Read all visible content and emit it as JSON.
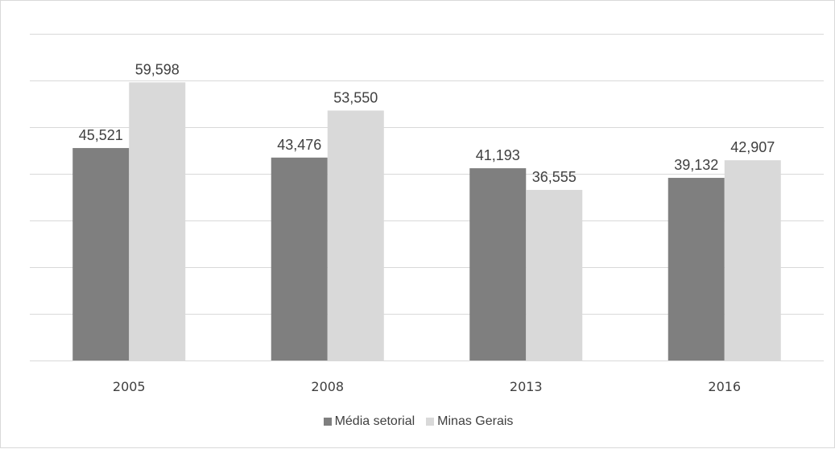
{
  "chart_data": {
    "type": "bar",
    "categories": [
      "2005",
      "2008",
      "2013",
      "2016"
    ],
    "series": [
      {
        "name": "Média setorial",
        "values": [
          45.521,
          43.476,
          41.193,
          39.132
        ],
        "labels": [
          "45,521",
          "43,476",
          "41,193",
          "39,132"
        ],
        "color": "#7f7f7f"
      },
      {
        "name": "Minas Gerais",
        "values": [
          59.598,
          53.55,
          36.555,
          42.907
        ],
        "labels": [
          "59,598",
          "53,550",
          "36,555",
          "42,907"
        ],
        "color": "#d9d9d9"
      }
    ],
    "ylim": [
      0,
      70
    ],
    "grid": true,
    "legend": "bottom",
    "colors": {
      "gridline": "#d9d9d9",
      "text": "#404040"
    }
  }
}
